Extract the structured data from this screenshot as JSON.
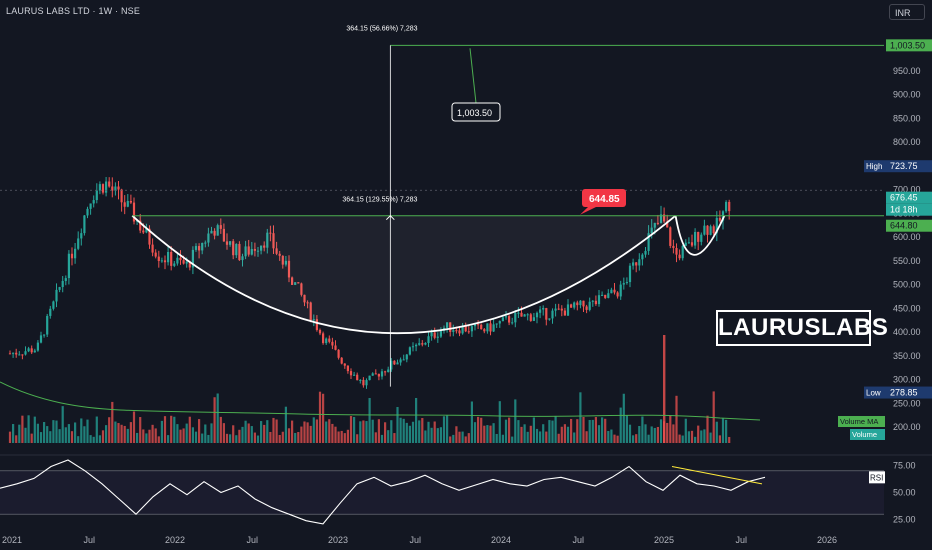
{
  "header": {
    "symbol": "LAURUS LABS LTD · 1W · NSE",
    "currency": "INR"
  },
  "brand": "LAURUSLABS",
  "colors": {
    "bg": "#131722",
    "up": "#26a69a",
    "down": "#ef5350",
    "target": "#4caf50",
    "accent": "#f23645"
  },
  "chart_data": [
    {
      "type": "candlestick",
      "title": "LAURUS LABS LTD · 1W · NSE",
      "x_ticks": [
        "2021",
        "Jul",
        "2022",
        "Jul",
        "2023",
        "Jul",
        "2024",
        "Jul",
        "2025",
        "Jul",
        "2026"
      ],
      "y_ticks": [
        200,
        250,
        300,
        350,
        400,
        450,
        500,
        550,
        600,
        650,
        700,
        750,
        800,
        850,
        900,
        950
      ],
      "y_tick_labels": [
        "200.00",
        "250.00",
        "300.00",
        "350.00",
        "400.00",
        "450.00",
        "500.00",
        "550.00",
        "600.00",
        "650.00",
        "700.00",
        "750.00",
        "800.00",
        "850.00",
        "900.00",
        "950.00"
      ],
      "ylim": [
        175,
        1050
      ],
      "price_path_weekly_close_approx": [
        {
          "date": "2021-01",
          "close": 355
        },
        {
          "date": "2021-03",
          "close": 365
        },
        {
          "date": "2021-05",
          "close": 520
        },
        {
          "date": "2021-07",
          "close": 690
        },
        {
          "date": "2021-08",
          "close": 715
        },
        {
          "date": "2021-10",
          "close": 650
        },
        {
          "date": "2021-12",
          "close": 560
        },
        {
          "date": "2022-02",
          "close": 540
        },
        {
          "date": "2022-04",
          "close": 620
        },
        {
          "date": "2022-06",
          "close": 560
        },
        {
          "date": "2022-08",
          "close": 600
        },
        {
          "date": "2022-10",
          "close": 500
        },
        {
          "date": "2022-12",
          "close": 390
        },
        {
          "date": "2023-02",
          "close": 320
        },
        {
          "date": "2023-03",
          "close": 290
        },
        {
          "date": "2023-05",
          "close": 330
        },
        {
          "date": "2023-07",
          "close": 370
        },
        {
          "date": "2023-09",
          "close": 410
        },
        {
          "date": "2023-12",
          "close": 405
        },
        {
          "date": "2024-02",
          "close": 430
        },
        {
          "date": "2024-05",
          "close": 440
        },
        {
          "date": "2024-08",
          "close": 460
        },
        {
          "date": "2024-10",
          "close": 490
        },
        {
          "date": "2024-12",
          "close": 600
        },
        {
          "date": "2025-01",
          "close": 640
        },
        {
          "date": "2025-02",
          "close": 560
        },
        {
          "date": "2025-03",
          "close": 580
        },
        {
          "date": "2025-04",
          "close": 620
        },
        {
          "date": "2025-05",
          "close": 620
        },
        {
          "date": "2025-06",
          "close": 676.45
        }
      ],
      "price_labels": [
        {
          "label": "High",
          "value": "723.75"
        },
        {
          "label": "",
          "value": "676.45"
        },
        {
          "label": "",
          "value": "1d 18h"
        },
        {
          "label": "",
          "value": "644.80"
        },
        {
          "label": "Low",
          "value": "278.85"
        },
        {
          "label": "",
          "value": "1,003.50"
        }
      ],
      "annotations": {
        "resistance_level": "644.85",
        "target_box": "1,003.50",
        "measure_top": "364.15 (56.66%) 7,283",
        "measure_mid": "364.15 (129.55%) 7,283"
      },
      "volume_labels": [
        "Volume MA",
        "Volume"
      ],
      "pattern": "cup and handle"
    },
    {
      "type": "line",
      "legend": "RSI",
      "y_ticks": [
        25,
        50,
        75
      ],
      "y_tick_labels": [
        "25.00",
        "50.00",
        "75.00"
      ],
      "ylim": [
        20,
        80
      ],
      "bands": [
        30,
        70
      ],
      "series": [
        {
          "name": "RSI",
          "values": [
            54,
            58,
            63,
            74,
            80,
            70,
            58,
            44,
            30,
            46,
            58,
            48,
            60,
            50,
            56,
            44,
            36,
            30,
            24,
            21,
            40,
            58,
            64,
            56,
            60,
            66,
            58,
            52,
            57,
            62,
            58,
            56,
            62,
            64,
            60,
            56,
            64,
            74,
            60,
            52,
            66,
            58,
            56,
            52,
            60,
            64
          ]
        }
      ]
    }
  ]
}
